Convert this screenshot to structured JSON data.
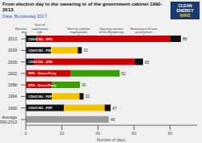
{
  "chart_data": {
    "type": "bar",
    "orientation": "horizontal",
    "stacked": true,
    "grid": false,
    "title": "From election day to the swearing in of the government cabinet 1990-2013.",
    "subtitle": "Data: Bundestag 2017.",
    "xlabel": "Number of days.",
    "categories": [
      "2013",
      "2009",
      "2005",
      "2002",
      "1998",
      "1994",
      "1990",
      "Average\n1990-2013"
    ],
    "values": [
      86,
      31,
      65,
      52,
      30,
      32,
      47,
      46
    ],
    "bar_labels": [
      "CDU/CSU - SPD",
      "CDU/CSU - FDP",
      "CDU/CSU - SPD",
      "SPD - Green Party",
      "SPD - Green Party",
      "CDU/CSU - FDP",
      "CDU/CSU - FDP",
      null
    ],
    "series": [
      {
        "values": [
          6.02,
          13.95,
          4.55,
          24.96,
          14.4,
          14.4,
          21.15,
          46
        ],
        "colors": [
          "#111111",
          "#111111",
          "#111111",
          "#cc0000",
          "#cc0000",
          "#111111",
          "#111111",
          "#999999"
        ]
      },
      {
        "values": [
          73.96,
          14.88,
          55.9,
          27.04,
          15.6,
          15.36,
          22.56,
          null
        ],
        "colors": [
          "#cc0000",
          "#f5c400",
          "#cc0000",
          "#3a9e00",
          "#3a9e00",
          "#f5c400",
          "#f5c400",
          null
        ]
      },
      {
        "values": [
          6.02,
          2.17,
          4.55,
          null,
          null,
          2.24,
          3.29,
          null
        ],
        "colors": [
          "#111111",
          "#111111",
          "#111111",
          null,
          null,
          "#111111",
          "#111111",
          null
        ]
      }
    ],
    "annotations": [
      {
        "x": 0,
        "text": "Election\nday"
      },
      {
        "x": 7.74,
        "text": "Start of\nexploratory\ntalk"
      },
      {
        "x": 29.24,
        "text": "Start of coalition\nnegotiations"
      },
      {
        "x": 47.3,
        "text": "Opening session\nof the Bundestag"
      },
      {
        "x": 65.36,
        "text": "Swearing in of new\ngovernment"
      }
    ],
    "xlim": [
      0,
      95
    ],
    "xticks": [
      0,
      20,
      40,
      60,
      80
    ],
    "background_color": "#f0f0f0",
    "title_color": "#111111",
    "subtitle_color": "#3355bb",
    "logo_text": [
      "CLEAN",
      "ENERGY",
      "WIRE"
    ]
  }
}
